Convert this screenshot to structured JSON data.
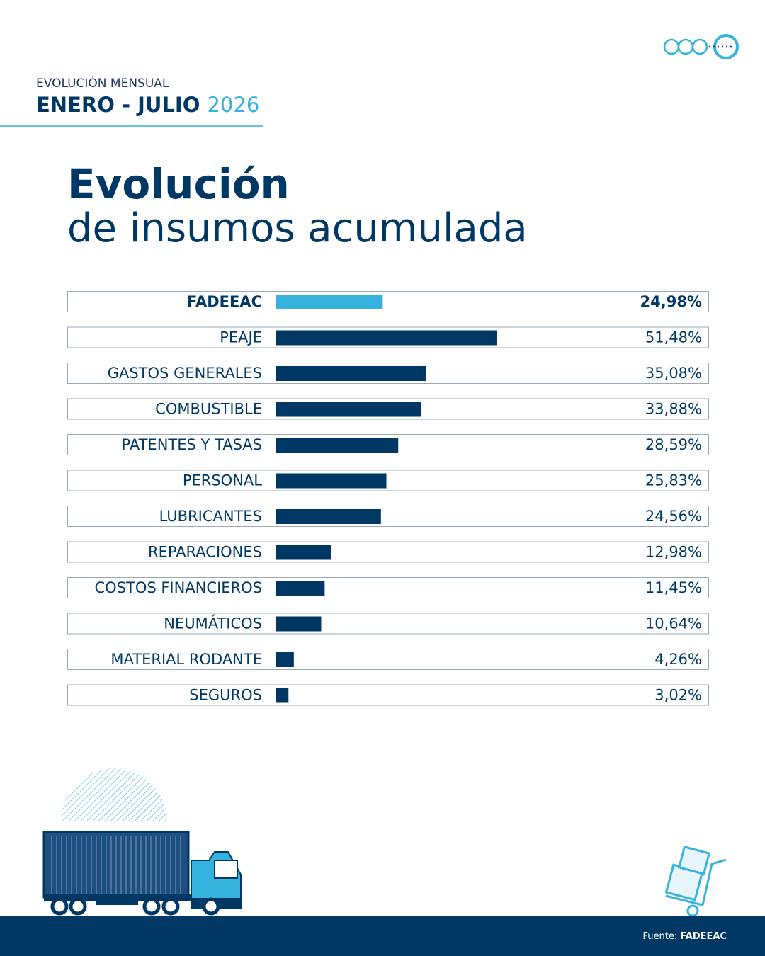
{
  "header": {
    "kicker": "EVOLUCIÓN MENSUAL",
    "period": "ENERO - JULIO",
    "year": "2026"
  },
  "chart_data": {
    "type": "bar",
    "orientation": "horizontal",
    "title": "Evolución",
    "subtitle": "de insumos acumulada",
    "categories": [
      "FADEEAC",
      "PEAJE",
      "GASTOS GENERALES",
      "COMBUSTIBLE",
      "PATENTES Y TASAS",
      "PERSONAL",
      "LUBRICANTES",
      "REPARACIONES",
      "COSTOS FINANCIEROS",
      "NEUMÁTICOS",
      "MATERIAL RODANTE",
      "SEGUROS"
    ],
    "values": [
      24.98,
      51.48,
      35.08,
      33.88,
      28.59,
      25.83,
      24.56,
      12.98,
      11.45,
      10.64,
      4.26,
      3.02
    ],
    "value_labels": [
      "24,98%",
      "51,48%",
      "35,08%",
      "33,88%",
      "28,59%",
      "25,83%",
      "24,56%",
      "12,98%",
      "11,45%",
      "10,64%",
      "4,26%",
      "3,02%"
    ],
    "colors": [
      "#35b3de",
      "#003865",
      "#003865",
      "#003865",
      "#003865",
      "#003865",
      "#003865",
      "#003865",
      "#003865",
      "#003865",
      "#003865",
      "#003865"
    ]
  },
  "footer": {
    "source_label": "Fuente:",
    "source": "FADEEAC"
  }
}
